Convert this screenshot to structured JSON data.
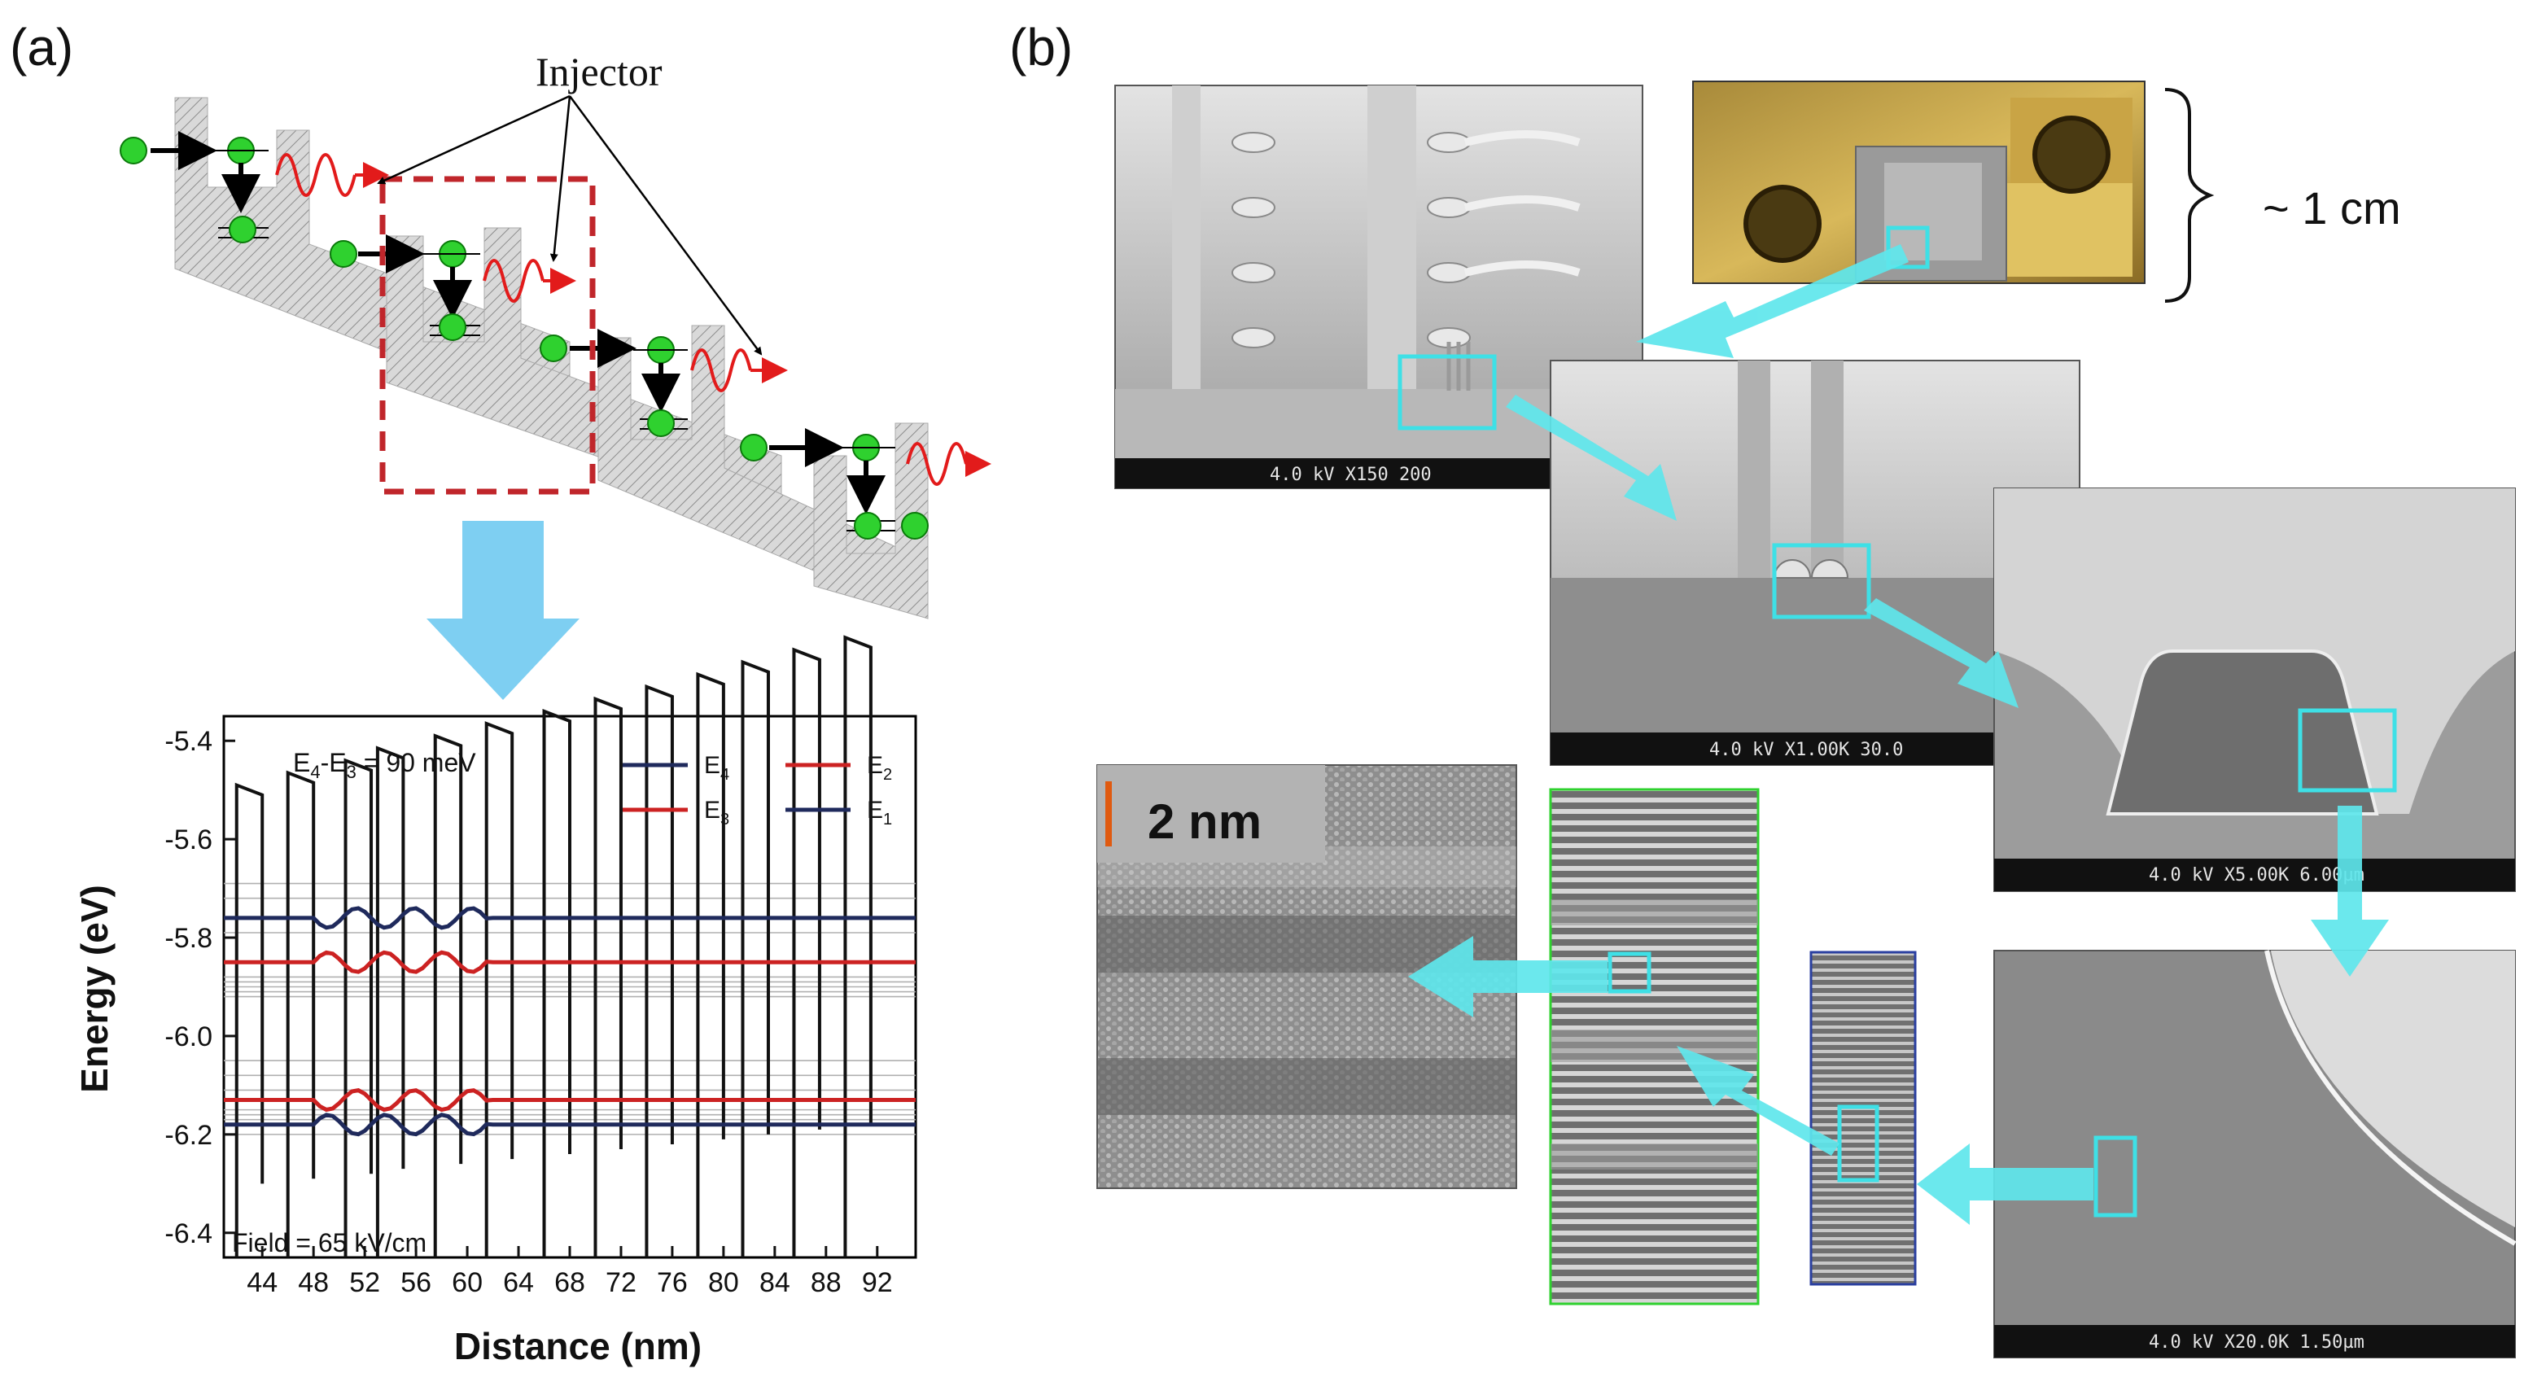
{
  "panel_a": {
    "label": "(a)",
    "injector_label": "Injector",
    "chart": {
      "type": "line",
      "ylabel": "Energy (eV)",
      "xlabel": "Distance (nm)",
      "annotation": "E4-E3 = 90 meV",
      "annotation_main": "E",
      "annotation_sub1": "4",
      "annotation_mid": "-E",
      "annotation_sub2": "3",
      "annotation_tail": " = 90 meV",
      "field_label": "Field = 65 kV/cm",
      "xlim": [
        41,
        95
      ],
      "ylim": [
        -6.45,
        -5.35
      ],
      "x_ticks": [
        "44",
        "48",
        "52",
        "56",
        "60",
        "64",
        "68",
        "72",
        "76",
        "80",
        "84",
        "88",
        "92"
      ],
      "x_tick_values": [
        44,
        48,
        52,
        56,
        60,
        64,
        68,
        72,
        76,
        80,
        84,
        88,
        92
      ],
      "y_ticks": [
        "-5.4",
        "-5.6",
        "-5.8",
        "-6.0",
        "-6.2",
        "-6.4"
      ],
      "y_tick_values": [
        -5.4,
        -5.6,
        -5.8,
        -6.0,
        -6.2,
        -6.4
      ],
      "legend": [
        {
          "base": "E",
          "sub": "4",
          "color": "#1f2a5c"
        },
        {
          "base": "E",
          "sub": "2",
          "color": "#cc2222"
        },
        {
          "base": "E",
          "sub": "3",
          "color": "#cc2222"
        },
        {
          "base": "E",
          "sub": "1",
          "color": "#1f2a5c"
        }
      ],
      "series": [
        {
          "name": "E4",
          "level": -5.76,
          "color": "#1f2a5c"
        },
        {
          "name": "E3",
          "level": -5.85,
          "color": "#cc2222"
        },
        {
          "name": "E2",
          "level": -6.13,
          "color": "#cc2222"
        },
        {
          "name": "E1",
          "level": -6.18,
          "color": "#1f2a5c"
        }
      ]
    }
  },
  "panel_b": {
    "label": "(b)",
    "scale_label": "~ 1 cm",
    "tem_scale": "2 nm",
    "sem_captions": [
      "4.0 kV   X150   200",
      "4.0 kV  X1.00K 30.0",
      "4.0 kV  X5.00K  6.00µm",
      "4.0 kV  X20.0K  1.50µm"
    ]
  },
  "colors": {
    "cyan": "#3ee0e6",
    "arrow_cyan": "#5ee6ec",
    "blue_arrow": "#7ecff2",
    "red_dash": "#c0262b",
    "dot_green": "#2fd12f",
    "e4_navy": "#1f2a5c",
    "e3_red": "#cc2222"
  }
}
